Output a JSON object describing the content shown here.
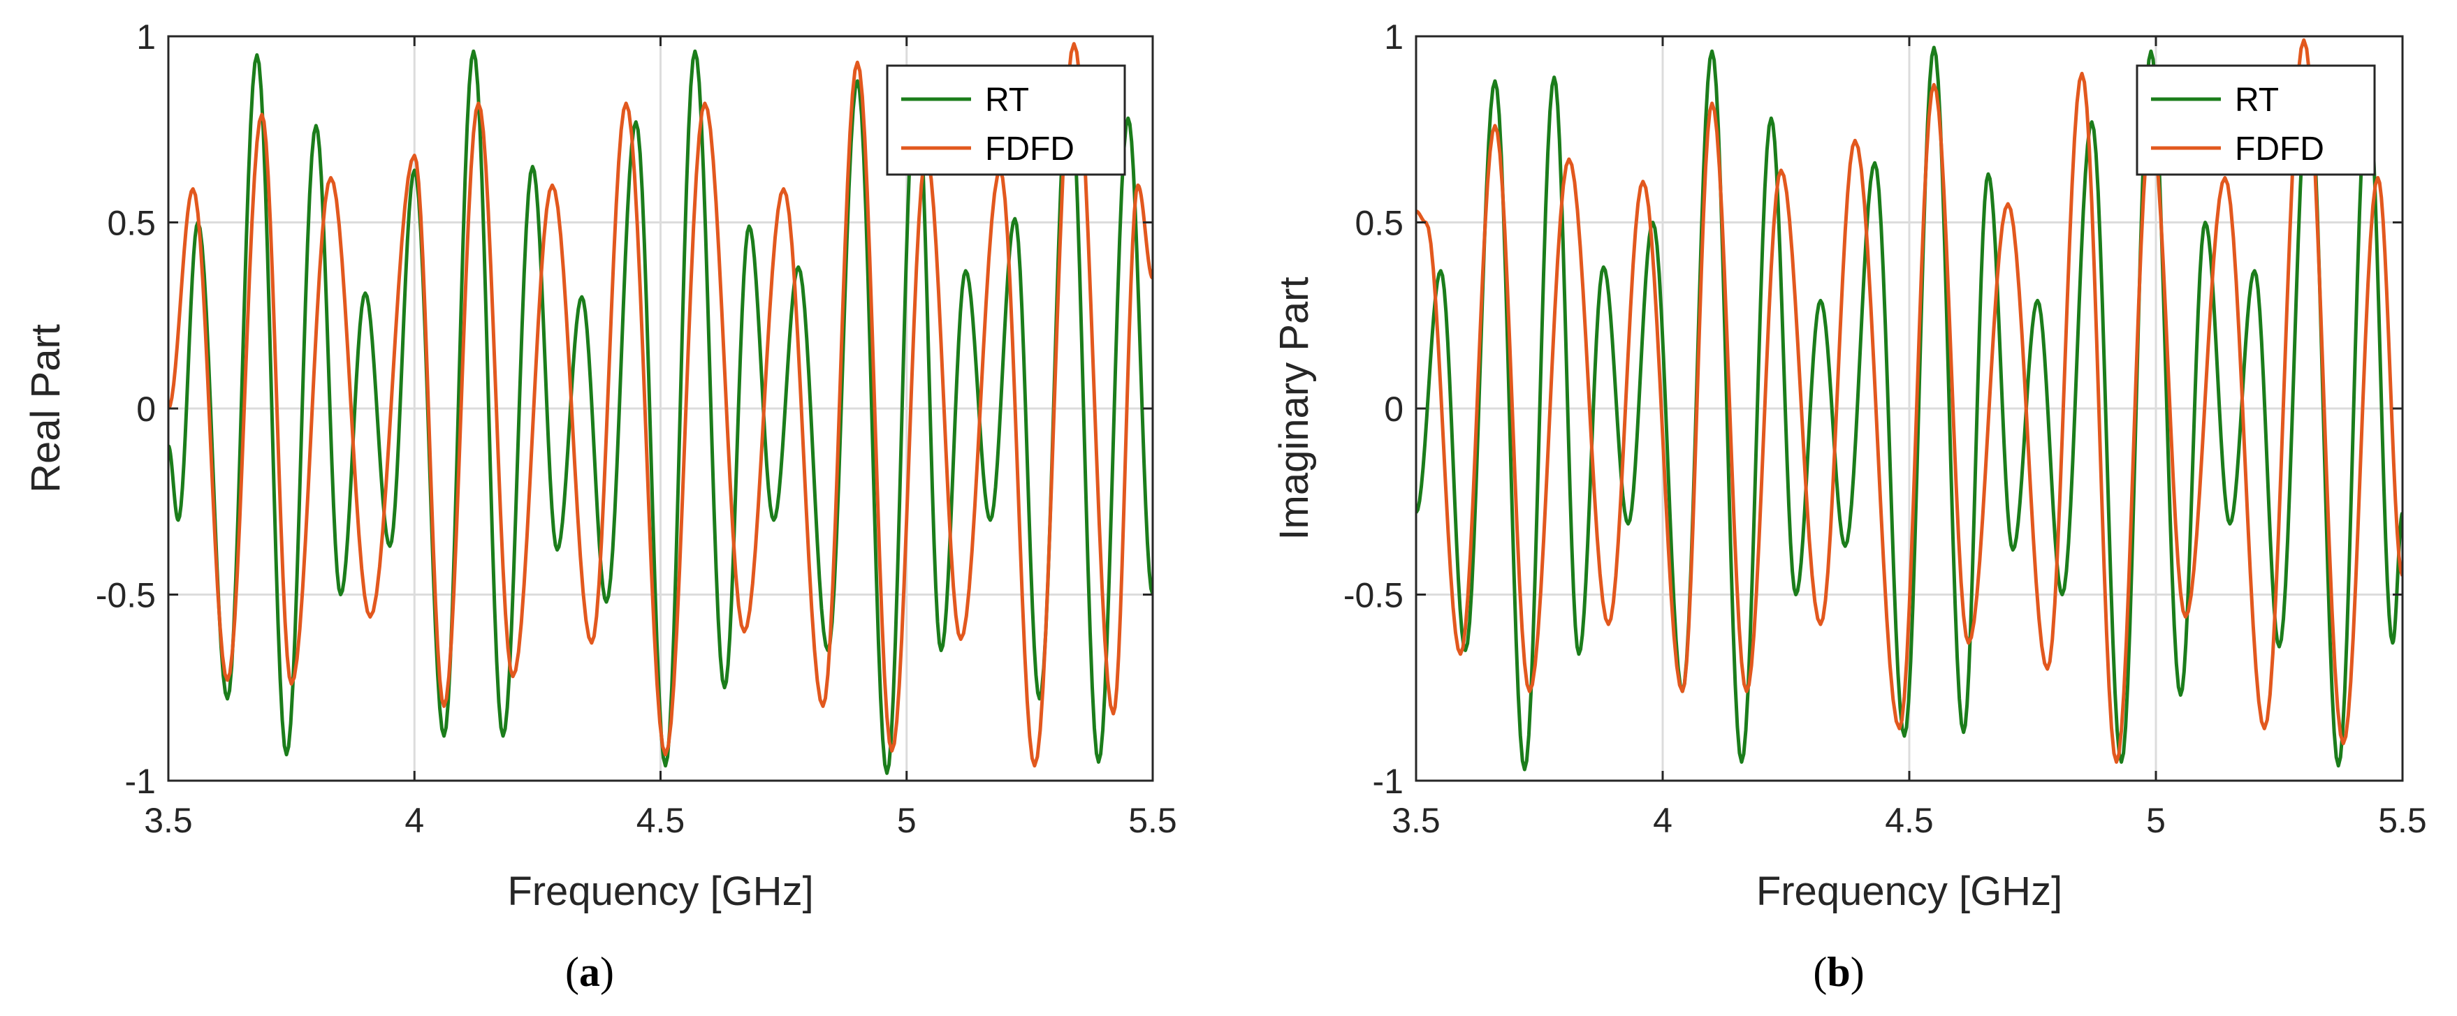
{
  "colors": {
    "rt": "#1b7d1b",
    "fdfd": "#e2581e",
    "grid": "#dcdcdc",
    "axis": "#262626"
  },
  "chart_data": [
    {
      "type": "line",
      "caption_letter": "a",
      "xlabel": "Frequency [GHz]",
      "ylabel": "Real Part",
      "xlim": [
        3.5,
        5.5
      ],
      "ylim": [
        -1,
        1
      ],
      "xticks": [
        3.5,
        4,
        4.5,
        5,
        5.5
      ],
      "xtick_labels": [
        "3.5",
        "4",
        "4.5",
        "5",
        "5.5"
      ],
      "yticks": [
        -1,
        -0.5,
        0,
        0.5,
        1
      ],
      "ytick_labels": [
        "-1",
        "-0.5",
        "0",
        "0.5",
        "1"
      ],
      "grid": true,
      "legend_position": "top-right",
      "series": [
        {
          "name": "RT",
          "color_key": "rt",
          "x": [
            3.5,
            3.52,
            3.56,
            3.62,
            3.68,
            3.74,
            3.8,
            3.85,
            3.9,
            3.95,
            4.0,
            4.06,
            4.12,
            4.18,
            4.24,
            4.29,
            4.34,
            4.39,
            4.45,
            4.51,
            4.57,
            4.63,
            4.68,
            4.73,
            4.78,
            4.84,
            4.9,
            4.96,
            5.02,
            5.07,
            5.12,
            5.17,
            5.22,
            5.27,
            5.33,
            5.39,
            5.45,
            5.5
          ],
          "y": [
            -0.1,
            -0.3,
            0.5,
            -0.78,
            0.95,
            -0.93,
            0.76,
            -0.5,
            0.31,
            -0.37,
            0.64,
            -0.88,
            0.96,
            -0.88,
            0.65,
            -0.38,
            0.3,
            -0.52,
            0.77,
            -0.96,
            0.96,
            -0.75,
            0.49,
            -0.3,
            0.38,
            -0.65,
            0.88,
            -0.98,
            0.9,
            -0.65,
            0.37,
            -0.3,
            0.51,
            -0.78,
            0.9,
            -0.95,
            0.78,
            -0.5
          ]
        },
        {
          "name": "FDFD",
          "color_key": "fdfd",
          "x": [
            3.5,
            3.55,
            3.62,
            3.69,
            3.75,
            3.83,
            3.91,
            4.0,
            4.06,
            4.13,
            4.2,
            4.28,
            4.36,
            4.43,
            4.51,
            4.59,
            4.67,
            4.75,
            4.83,
            4.9,
            4.97,
            5.04,
            5.11,
            5.19,
            5.26,
            5.34,
            5.42,
            5.47,
            5.5
          ],
          "y": [
            0.0,
            0.59,
            -0.73,
            0.79,
            -0.74,
            0.62,
            -0.56,
            0.68,
            -0.8,
            0.82,
            -0.72,
            0.6,
            -0.63,
            0.82,
            -0.93,
            0.82,
            -0.6,
            0.59,
            -0.8,
            0.93,
            -0.92,
            0.68,
            -0.62,
            0.64,
            -0.96,
            0.98,
            -0.82,
            0.6,
            0.35
          ]
        }
      ]
    },
    {
      "type": "line",
      "caption_letter": "b",
      "xlabel": "Frequency [GHz]",
      "ylabel": "Imaginary Part",
      "xlim": [
        3.5,
        5.5
      ],
      "ylim": [
        -1,
        1
      ],
      "xticks": [
        3.5,
        4,
        4.5,
        5,
        5.5
      ],
      "xtick_labels": [
        "3.5",
        "4",
        "4.5",
        "5",
        "5.5"
      ],
      "yticks": [
        -1,
        -0.5,
        0,
        0.5,
        1
      ],
      "ytick_labels": [
        "-1",
        "-0.5",
        "0",
        "0.5",
        "1"
      ],
      "grid": true,
      "legend_position": "top-right",
      "series": [
        {
          "name": "RT",
          "color_key": "rt",
          "x": [
            3.5,
            3.55,
            3.6,
            3.66,
            3.72,
            3.78,
            3.83,
            3.88,
            3.93,
            3.98,
            4.04,
            4.1,
            4.16,
            4.22,
            4.27,
            4.32,
            4.37,
            4.43,
            4.49,
            4.55,
            4.61,
            4.66,
            4.71,
            4.76,
            4.81,
            4.87,
            4.93,
            4.99,
            5.05,
            5.1,
            5.15,
            5.2,
            5.25,
            5.31,
            5.37,
            5.43,
            5.48,
            5.5
          ],
          "y": [
            -0.28,
            0.37,
            -0.65,
            0.88,
            -0.97,
            0.89,
            -0.66,
            0.38,
            -0.31,
            0.5,
            -0.76,
            0.96,
            -0.95,
            0.78,
            -0.5,
            0.29,
            -0.37,
            0.66,
            -0.88,
            0.97,
            -0.87,
            0.63,
            -0.38,
            0.29,
            -0.5,
            0.77,
            -0.95,
            0.96,
            -0.77,
            0.5,
            -0.31,
            0.37,
            -0.64,
            0.88,
            -0.96,
            0.87,
            -0.63,
            -0.28
          ]
        },
        {
          "name": "FDFD",
          "color_key": "fdfd",
          "x": [
            3.5,
            3.52,
            3.59,
            3.66,
            3.73,
            3.81,
            3.89,
            3.96,
            4.04,
            4.1,
            4.17,
            4.24,
            4.32,
            4.39,
            4.48,
            4.55,
            4.62,
            4.7,
            4.78,
            4.85,
            4.92,
            4.99,
            5.06,
            5.14,
            5.22,
            5.3,
            5.38,
            5.45,
            5.5
          ],
          "y": [
            0.53,
            0.5,
            -0.66,
            0.76,
            -0.76,
            0.67,
            -0.58,
            0.61,
            -0.76,
            0.82,
            -0.76,
            0.64,
            -0.58,
            0.72,
            -0.86,
            0.87,
            -0.63,
            0.55,
            -0.7,
            0.9,
            -0.95,
            0.76,
            -0.56,
            0.62,
            -0.86,
            0.99,
            -0.9,
            0.62,
            -0.45
          ]
        }
      ]
    }
  ]
}
